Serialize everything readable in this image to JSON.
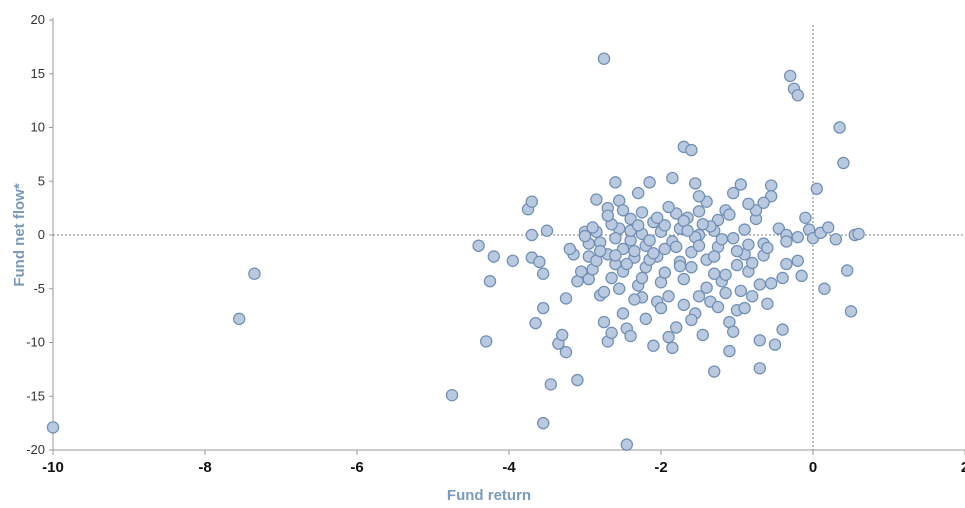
{
  "chart_data": {
    "type": "scatter",
    "title": "",
    "xlabel": "Fund return",
    "ylabel": "Fund net flow*",
    "xlim": [
      -10,
      2
    ],
    "ylim": [
      -20,
      20
    ],
    "x_ticks": [
      -10,
      -8,
      -6,
      -4,
      -2,
      0,
      2
    ],
    "y_ticks": [
      20,
      15,
      10,
      5,
      0,
      -5,
      -10,
      -15,
      -20
    ],
    "x_tick_labels": [
      "-10",
      "-8",
      "-6",
      "-4",
      "-2",
      "0",
      "2"
    ],
    "y_tick_labels": [
      "20",
      "15",
      "10",
      "5",
      "0",
      "-5",
      "-10",
      "-15",
      "-20"
    ],
    "reference_lines": {
      "x": 0,
      "y": 0
    },
    "grid": false,
    "marker_fill": "#b9c9df",
    "marker_stroke": "#6f8db3",
    "axis_title_color": "#7a9bbd",
    "series": [
      {
        "points": [
          [
            -10.0,
            -17.9
          ],
          [
            -7.55,
            -7.8
          ],
          [
            -7.35,
            -3.6
          ],
          [
            -4.75,
            -14.9
          ],
          [
            -4.4,
            -1.0
          ],
          [
            -4.3,
            -9.9
          ],
          [
            -4.25,
            -4.3
          ],
          [
            -4.2,
            -2.0
          ],
          [
            -3.95,
            -2.4
          ],
          [
            -3.75,
            2.4
          ],
          [
            -3.7,
            3.1
          ],
          [
            -3.7,
            0.0
          ],
          [
            -3.65,
            -8.2
          ],
          [
            -3.7,
            -2.1
          ],
          [
            -3.6,
            -2.5
          ],
          [
            -3.55,
            -3.6
          ],
          [
            -3.55,
            -6.8
          ],
          [
            -3.55,
            -17.5
          ],
          [
            -3.5,
            0.4
          ],
          [
            -3.45,
            -13.9
          ],
          [
            -3.35,
            -10.1
          ],
          [
            -3.3,
            -9.3
          ],
          [
            -3.25,
            -5.9
          ],
          [
            -3.25,
            -10.9
          ],
          [
            -3.15,
            -1.8
          ],
          [
            -3.1,
            -4.3
          ],
          [
            -3.1,
            -13.5
          ],
          [
            -3.05,
            -3.4
          ],
          [
            -3.0,
            0.3
          ],
          [
            -2.95,
            -2.0
          ],
          [
            -2.95,
            -4.1
          ],
          [
            -2.9,
            -3.2
          ],
          [
            -2.85,
            3.3
          ],
          [
            -2.85,
            0.3
          ],
          [
            -2.8,
            -0.7
          ],
          [
            -2.75,
            16.4
          ],
          [
            -2.8,
            -5.6
          ],
          [
            -2.75,
            -8.1
          ],
          [
            -2.7,
            -9.9
          ],
          [
            -2.7,
            2.5
          ],
          [
            -2.7,
            -1.8
          ],
          [
            -2.65,
            -4.0
          ],
          [
            -2.6,
            -2.7
          ],
          [
            -2.6,
            4.9
          ],
          [
            -2.55,
            3.2
          ],
          [
            -2.55,
            0.6
          ],
          [
            -2.5,
            2.3
          ],
          [
            -2.5,
            -1.3
          ],
          [
            -2.5,
            -3.4
          ],
          [
            -2.5,
            -7.3
          ],
          [
            -2.45,
            -8.7
          ],
          [
            -2.45,
            -19.5
          ],
          [
            -2.4,
            1.5
          ],
          [
            -2.4,
            -0.5
          ],
          [
            -2.4,
            -9.4
          ],
          [
            -2.35,
            -2.1
          ],
          [
            -2.3,
            -4.7
          ],
          [
            -2.3,
            3.9
          ],
          [
            -2.25,
            0.1
          ],
          [
            -2.25,
            -5.8
          ],
          [
            -2.2,
            -1.0
          ],
          [
            -2.2,
            -3.0
          ],
          [
            -2.15,
            4.9
          ],
          [
            -2.1,
            1.2
          ],
          [
            -2.1,
            -10.3
          ],
          [
            -2.05,
            -2.0
          ],
          [
            -2.05,
            -6.2
          ],
          [
            -2.0,
            0.3
          ],
          [
            -2.0,
            -4.4
          ],
          [
            -1.95,
            -1.3
          ],
          [
            -1.9,
            -5.7
          ],
          [
            -1.9,
            -9.5
          ],
          [
            -1.85,
            5.3
          ],
          [
            -1.85,
            -10.5
          ],
          [
            -1.8,
            2.0
          ],
          [
            -1.75,
            0.6
          ],
          [
            -1.75,
            -2.5
          ],
          [
            -1.7,
            -4.1
          ],
          [
            -1.7,
            8.2
          ],
          [
            -1.65,
            1.6
          ],
          [
            -1.6,
            7.9
          ],
          [
            -1.6,
            -1.6
          ],
          [
            -1.6,
            -3.0
          ],
          [
            -1.55,
            4.8
          ],
          [
            -1.55,
            -7.3
          ],
          [
            -1.5,
            2.2
          ],
          [
            -1.5,
            0.0
          ],
          [
            -1.5,
            -5.7
          ],
          [
            -1.45,
            -9.3
          ],
          [
            -1.4,
            3.1
          ],
          [
            -1.4,
            -2.3
          ],
          [
            -1.35,
            -6.2
          ],
          [
            -1.3,
            -12.7
          ],
          [
            -1.3,
            0.4
          ],
          [
            -1.25,
            -1.1
          ],
          [
            -1.25,
            1.4
          ],
          [
            -1.2,
            -4.3
          ],
          [
            -1.15,
            2.3
          ],
          [
            -1.15,
            -5.4
          ],
          [
            -1.1,
            -8.1
          ],
          [
            -1.1,
            -10.8
          ],
          [
            -1.05,
            -0.3
          ],
          [
            -1.05,
            3.9
          ],
          [
            -1.0,
            -2.8
          ],
          [
            -1.0,
            -7.0
          ],
          [
            -0.95,
            4.7
          ],
          [
            -0.9,
            0.5
          ],
          [
            -0.9,
            -1.8
          ],
          [
            -0.9,
            -6.8
          ],
          [
            -0.85,
            -3.4
          ],
          [
            -0.8,
            -5.7
          ],
          [
            -0.75,
            1.5
          ],
          [
            -0.75,
            2.3
          ],
          [
            -0.7,
            -9.8
          ],
          [
            -0.7,
            -12.4
          ],
          [
            -0.65,
            -0.8
          ],
          [
            -0.65,
            -1.9
          ],
          [
            -0.6,
            -6.4
          ],
          [
            -0.55,
            -4.5
          ],
          [
            -0.55,
            4.6
          ],
          [
            -0.55,
            3.6
          ],
          [
            -0.5,
            -10.2
          ],
          [
            -0.45,
            0.6
          ],
          [
            -0.4,
            -8.8
          ],
          [
            -0.4,
            -4.0
          ],
          [
            -0.35,
            -2.7
          ],
          [
            -0.35,
            0.0
          ],
          [
            -0.3,
            14.8
          ],
          [
            -0.25,
            13.6
          ],
          [
            -0.2,
            -2.4
          ],
          [
            -0.2,
            13.0
          ],
          [
            -0.15,
            -3.8
          ],
          [
            -0.1,
            1.6
          ],
          [
            -0.05,
            0.5
          ],
          [
            0.0,
            -0.3
          ],
          [
            0.05,
            4.3
          ],
          [
            0.1,
            0.2
          ],
          [
            0.15,
            -5.0
          ],
          [
            0.2,
            0.7
          ],
          [
            0.3,
            -0.4
          ],
          [
            0.35,
            10.0
          ],
          [
            0.4,
            6.7
          ],
          [
            0.45,
            -3.3
          ],
          [
            0.5,
            -7.1
          ],
          [
            0.55,
            0.0
          ],
          [
            0.6,
            0.1
          ],
          [
            -2.95,
            -0.8
          ],
          [
            -2.6,
            -0.3
          ],
          [
            -2.35,
            -1.5
          ],
          [
            -2.15,
            -2.3
          ],
          [
            -1.95,
            0.9
          ],
          [
            -1.85,
            -0.6
          ],
          [
            -1.7,
            1.3
          ],
          [
            -1.55,
            -0.2
          ],
          [
            -1.35,
            0.8
          ],
          [
            -1.2,
            -0.4
          ],
          [
            -2.65,
            1.0
          ],
          [
            -2.45,
            -2.7
          ],
          [
            -2.25,
            2.1
          ],
          [
            -2.05,
            1.6
          ],
          [
            -1.8,
            -1.1
          ],
          [
            -1.65,
            0.4
          ],
          [
            -1.45,
            1.0
          ],
          [
            -1.3,
            -2.0
          ],
          [
            -2.85,
            -2.4
          ],
          [
            -2.55,
            -5.0
          ],
          [
            -2.25,
            -4.0
          ],
          [
            -1.95,
            -3.5
          ],
          [
            -1.7,
            -6.5
          ],
          [
            -1.4,
            -4.9
          ],
          [
            -1.15,
            -3.7
          ],
          [
            -0.95,
            -5.2
          ],
          [
            -2.75,
            -5.3
          ],
          [
            -2.35,
            -6.0
          ],
          [
            -2.0,
            -6.8
          ],
          [
            -1.6,
            -7.9
          ],
          [
            -1.25,
            -6.7
          ],
          [
            -2.65,
            -9.1
          ],
          [
            -2.2,
            -7.8
          ],
          [
            -1.8,
            -8.6
          ],
          [
            -1.05,
            -9.0
          ],
          [
            -0.8,
            -2.6
          ],
          [
            -0.6,
            -1.2
          ],
          [
            -0.35,
            -0.6
          ],
          [
            -0.2,
            -0.2
          ],
          [
            -2.9,
            0.7
          ],
          [
            -2.7,
            1.8
          ],
          [
            -2.4,
            0.4
          ],
          [
            -2.15,
            -0.5
          ],
          [
            -1.9,
            2.6
          ],
          [
            -1.5,
            3.6
          ],
          [
            -1.1,
            1.9
          ],
          [
            -0.85,
            2.9
          ],
          [
            -0.65,
            3.0
          ],
          [
            -3.2,
            -1.3
          ],
          [
            -3.0,
            -0.1
          ],
          [
            -2.8,
            -1.5
          ],
          [
            -2.6,
            -1.9
          ],
          [
            -2.3,
            0.9
          ],
          [
            -2.1,
            -1.7
          ],
          [
            -1.75,
            -2.9
          ],
          [
            -1.5,
            -1.0
          ],
          [
            -1.3,
            -3.6
          ],
          [
            -1.0,
            -1.5
          ],
          [
            -0.85,
            -0.9
          ],
          [
            -0.7,
            -4.6
          ]
        ]
      }
    ]
  }
}
